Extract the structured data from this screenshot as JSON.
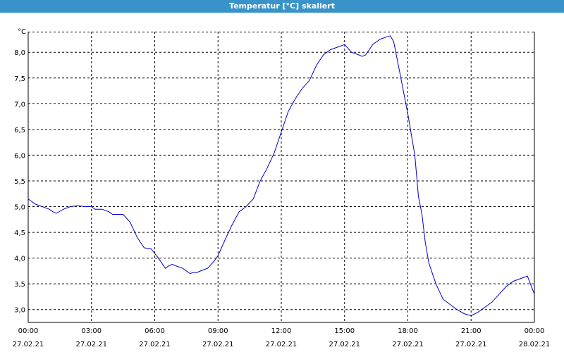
{
  "window": {
    "title": "Temperatur [°C] skaliert"
  },
  "chart_data": {
    "type": "line",
    "title": "Temperatur [°C] skaliert",
    "ylabel": "°C",
    "xlabel": "",
    "ylim": [
      2.75,
      8.4
    ],
    "yticks": [
      3.0,
      3.5,
      4.0,
      4.5,
      5.0,
      5.5,
      6.0,
      6.5,
      7.0,
      7.5,
      8.0
    ],
    "ytick_labels": [
      "3,0",
      "3,5",
      "4,0",
      "4,5",
      "5,0",
      "5,5",
      "6,0",
      "6,5",
      "7,0",
      "7,5",
      "8,0"
    ],
    "xlim_hours": [
      0,
      24
    ],
    "xticks": [
      {
        "time": "00:00",
        "date": "27.02.21"
      },
      {
        "time": "03:00",
        "date": "27.02.21"
      },
      {
        "time": "06:00",
        "date": "27.02.21"
      },
      {
        "time": "09:00",
        "date": "27.02.21"
      },
      {
        "time": "12:00",
        "date": "27.02.21"
      },
      {
        "time": "15:00",
        "date": "27.02.21"
      },
      {
        "time": "18:00",
        "date": "27.02.21"
      },
      {
        "time": "21:00",
        "date": "27.02.21"
      },
      {
        "time": "00:00",
        "date": "28.02.21"
      }
    ],
    "grid": true,
    "line_color": "#0000cc",
    "series": [
      {
        "x": [
          0.0,
          0.33,
          0.67,
          1.0,
          1.17,
          1.33,
          1.67,
          2.0,
          2.33,
          2.67,
          3.0,
          3.17,
          3.5,
          3.83,
          4.0,
          4.17,
          4.5,
          4.83,
          5.17,
          5.5,
          5.83,
          6.17,
          6.5,
          6.67,
          6.83,
          7.0,
          7.33,
          7.67,
          7.83,
          8.0,
          8.17,
          8.5,
          8.83,
          9.0,
          9.33,
          9.67,
          10.0,
          10.33,
          10.67,
          11.0,
          11.33,
          11.67,
          12.0,
          12.33,
          12.67,
          13.0,
          13.33,
          13.67,
          14.0,
          14.33,
          14.67,
          15.0,
          15.33,
          15.67,
          15.83,
          16.0,
          16.17,
          16.33,
          16.5,
          16.67,
          17.0,
          17.17,
          17.33,
          17.67,
          18.0,
          18.33,
          18.5,
          18.67,
          18.83,
          19.0,
          19.33,
          19.67,
          20.0,
          20.33,
          20.67,
          21.0,
          21.33,
          21.67,
          22.0,
          22.33,
          22.67,
          23.0,
          23.33,
          23.67,
          24.0
        ],
        "y": [
          5.15,
          5.05,
          5.0,
          4.95,
          4.9,
          4.87,
          4.95,
          5.0,
          5.02,
          5.0,
          5.0,
          4.95,
          4.95,
          4.9,
          4.85,
          4.85,
          4.85,
          4.7,
          4.4,
          4.2,
          4.18,
          4.0,
          3.8,
          3.85,
          3.88,
          3.85,
          3.8,
          3.7,
          3.72,
          3.72,
          3.75,
          3.8,
          3.95,
          4.05,
          4.35,
          4.65,
          4.9,
          5.0,
          5.15,
          5.5,
          5.75,
          6.05,
          6.45,
          6.85,
          7.1,
          7.3,
          7.45,
          7.75,
          7.95,
          8.05,
          8.1,
          8.15,
          8.0,
          7.95,
          7.92,
          7.95,
          8.05,
          8.15,
          8.2,
          8.25,
          8.3,
          8.32,
          8.2,
          7.5,
          6.8,
          6.0,
          5.2,
          4.85,
          4.3,
          3.9,
          3.5,
          3.2,
          3.1,
          3.0,
          2.92,
          2.88,
          2.95,
          3.05,
          3.15,
          3.3,
          3.45,
          3.55,
          3.6,
          3.65,
          3.3
        ]
      }
    ]
  }
}
